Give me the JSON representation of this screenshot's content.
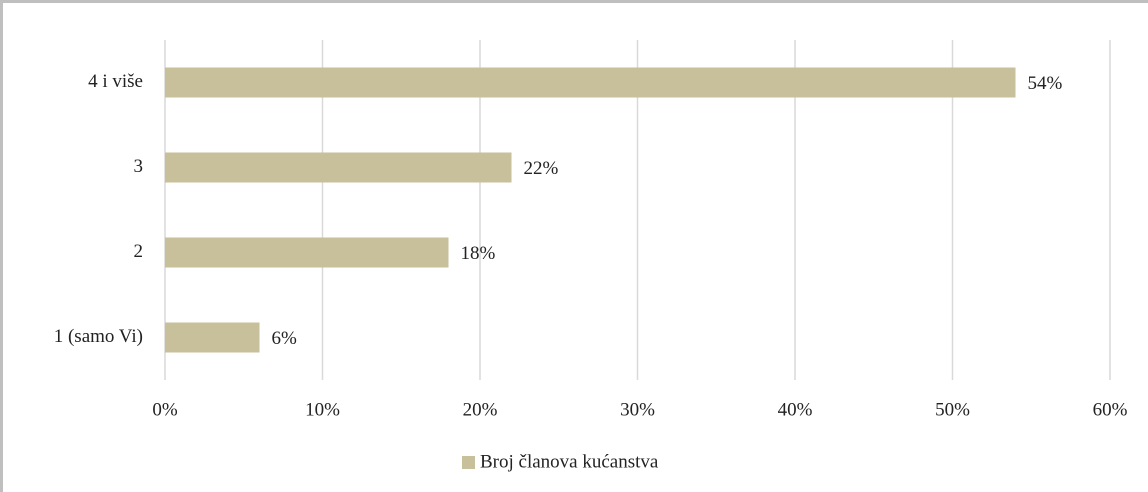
{
  "chart_data": {
    "type": "barh",
    "categories": [
      "4 i više",
      "3",
      "2",
      "1 (samo Vi)"
    ],
    "series": [
      {
        "name": "Broj članova kućanstva",
        "color": "#c8bf9b",
        "values": [
          54,
          22,
          18,
          6
        ],
        "value_labels": [
          "54%",
          "22%",
          "18%",
          "6%"
        ]
      }
    ],
    "xlim": [
      0,
      60
    ],
    "xticks": [
      {
        "value": 0,
        "label": "0%"
      },
      {
        "value": 10,
        "label": "10%"
      },
      {
        "value": 20,
        "label": "20%"
      },
      {
        "value": 30,
        "label": "30%"
      },
      {
        "value": 40,
        "label": "40%"
      },
      {
        "value": 50,
        "label": "50%"
      },
      {
        "value": 60,
        "label": "60%"
      }
    ],
    "grid": true,
    "legend": "bottom"
  }
}
